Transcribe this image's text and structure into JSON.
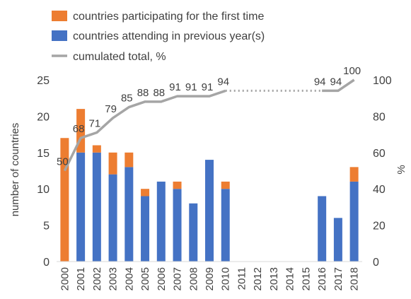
{
  "chart_data": {
    "type": "bar",
    "stacked": true,
    "categories": [
      "2000",
      "2001",
      "2002",
      "2003",
      "2004",
      "2005",
      "2006",
      "2007",
      "2008",
      "2009",
      "2010",
      "2011",
      "2012",
      "2013",
      "2014",
      "2015",
      "2016",
      "2017",
      "2018"
    ],
    "series": [
      {
        "name": "countries participating for the first time",
        "color": "#ED7D31",
        "axis": "left",
        "values": [
          17,
          6,
          1,
          3,
          2,
          1,
          0,
          1,
          0,
          0,
          1,
          null,
          null,
          null,
          null,
          null,
          0,
          0,
          2
        ]
      },
      {
        "name": "countries attending in previous year(s)",
        "color": "#4472C4",
        "axis": "left",
        "values": [
          0,
          15,
          15,
          12,
          13,
          9,
          11,
          10,
          8,
          14,
          10,
          null,
          null,
          null,
          null,
          null,
          9,
          6,
          11
        ]
      },
      {
        "name": "cumulated total, %",
        "type": "line",
        "color": "#A5A5A5",
        "axis": "right",
        "values": [
          50,
          68,
          71,
          79,
          85,
          88,
          88,
          91,
          91,
          91,
          94,
          94,
          94,
          94,
          94,
          94,
          94,
          94,
          100
        ],
        "labels": [
          "50",
          "68",
          "71",
          "79",
          "85",
          "88",
          "88",
          "91",
          "91",
          "91",
          "94",
          "",
          "",
          "",
          "",
          "",
          "94",
          "94",
          "100"
        ],
        "dotted_range": [
          "2010",
          "2016"
        ]
      }
    ],
    "ylabel_left": "number of countries",
    "ylabel_right": "%",
    "ylim_left": [
      0,
      25
    ],
    "yticks_left": [
      "0",
      "5",
      "10",
      "15",
      "20",
      "25"
    ],
    "ylim_right": [
      0,
      100
    ],
    "yticks_right": [
      "0",
      "20",
      "40",
      "60",
      "80",
      "100"
    ],
    "grid": false,
    "legend_position": "top-left"
  }
}
